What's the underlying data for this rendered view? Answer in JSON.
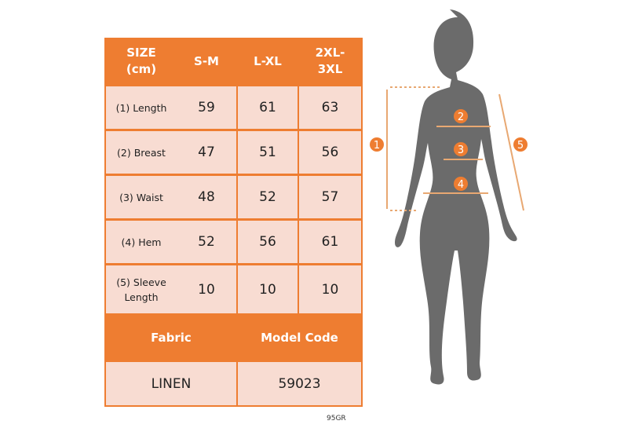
{
  "table": {
    "header": [
      "SIZE\n(cm)",
      "S-M",
      "L-XL",
      "2XL-\n3XL"
    ],
    "rows": [
      {
        "label": "(1) Length",
        "values": [
          "59",
          "61",
          "63"
        ]
      },
      {
        "label": "(2) Breast",
        "values": [
          "47",
          "51",
          "56"
        ]
      },
      {
        "label": "(3) Waist",
        "values": [
          "48",
          "52",
          "57"
        ]
      },
      {
        "label": "(4) Hem",
        "values": [
          "52",
          "56",
          "61"
        ]
      },
      {
        "label": "(5) Sleeve\nLength",
        "values": [
          "10",
          "10",
          "10"
        ]
      }
    ],
    "info_header": [
      "Fabric",
      "Model Code"
    ],
    "info_values": [
      "LINEN",
      "59023"
    ]
  },
  "figure": {
    "markers": [
      "1",
      "2",
      "3",
      "4",
      "5"
    ]
  },
  "footer_code": "95GR",
  "colors": {
    "accent": "#ee7d31",
    "cell": "#f8dcd2",
    "silhouette": "#6b6b6b"
  }
}
